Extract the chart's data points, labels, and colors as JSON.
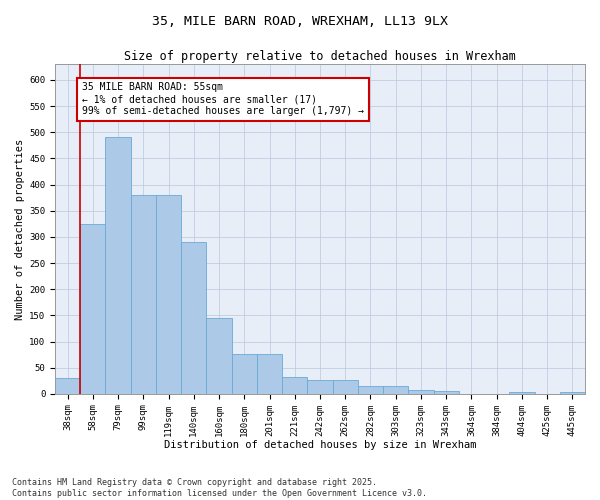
{
  "title_line1": "35, MILE BARN ROAD, WREXHAM, LL13 9LX",
  "title_line2": "Size of property relative to detached houses in Wrexham",
  "xlabel": "Distribution of detached houses by size in Wrexham",
  "ylabel": "Number of detached properties",
  "categories": [
    "38sqm",
    "58sqm",
    "79sqm",
    "99sqm",
    "119sqm",
    "140sqm",
    "160sqm",
    "180sqm",
    "201sqm",
    "221sqm",
    "242sqm",
    "262sqm",
    "282sqm",
    "303sqm",
    "323sqm",
    "343sqm",
    "364sqm",
    "384sqm",
    "404sqm",
    "425sqm",
    "445sqm"
  ],
  "values": [
    30,
    325,
    490,
    380,
    380,
    290,
    145,
    76,
    76,
    32,
    27,
    27,
    15,
    15,
    8,
    5,
    0,
    0,
    4,
    0,
    3
  ],
  "bar_color": "#adc9e8",
  "bar_edge_color": "#6aaad4",
  "redline_index": 0,
  "annotation_title": "35 MILE BARN ROAD: 55sqm",
  "annotation_line1": "← 1% of detached houses are smaller (17)",
  "annotation_line2": "99% of semi-detached houses are larger (1,797) →",
  "annotation_box_color": "#ffffff",
  "annotation_box_edge": "#cc0000",
  "redline_color": "#cc0000",
  "ylim": [
    0,
    630
  ],
  "yticks": [
    0,
    50,
    100,
    150,
    200,
    250,
    300,
    350,
    400,
    450,
    500,
    550,
    600
  ],
  "bg_color": "#e8eef8",
  "footer": "Contains HM Land Registry data © Crown copyright and database right 2025.\nContains public sector information licensed under the Open Government Licence v3.0.",
  "title_fontsize": 9.5,
  "subtitle_fontsize": 8.5,
  "axis_label_fontsize": 7.5,
  "tick_fontsize": 6.5,
  "footer_fontsize": 6,
  "annotation_fontsize": 7
}
